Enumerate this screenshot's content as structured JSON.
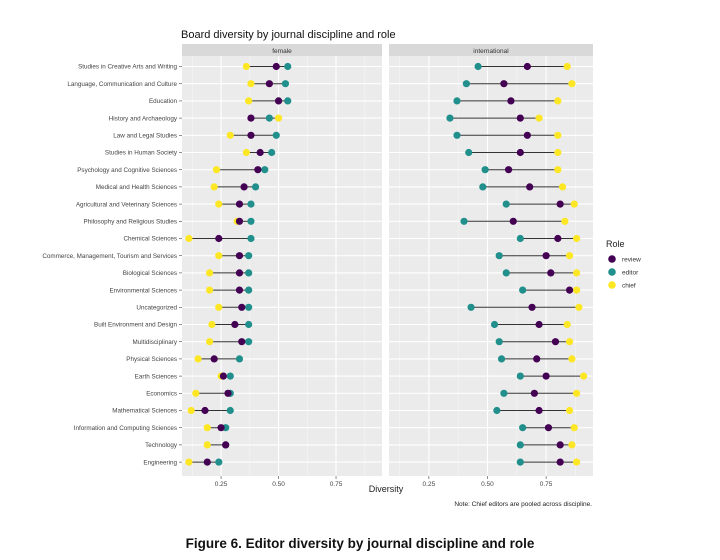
{
  "figure": {
    "caption": "Figure 6. Editor diversity by journal discipline and role"
  },
  "chart_data": {
    "type": "scatter",
    "subtype": "dumbbell",
    "title": "Board diversity by journal discipline and role",
    "xlabel": "Diversity",
    "ylabel": "",
    "note": "Note: Chief editors are pooled across discipline.",
    "xlim": [
      0.08,
      0.95
    ],
    "xticks": [
      0.25,
      0.5,
      0.75
    ],
    "xtick_labels": [
      "0.25",
      "0.50",
      "0.75"
    ],
    "grid": true,
    "legend": {
      "title": "Role",
      "placement": "right",
      "entries": [
        {
          "key": "review",
          "label": "review",
          "color": "#440154"
        },
        {
          "key": "editor",
          "label": "editor",
          "color": "#21908C"
        },
        {
          "key": "chief",
          "label": "chief",
          "color": "#FDE725"
        }
      ]
    },
    "categories": [
      "Studies in Creative Arts and Writing",
      "Language, Communication and Culture",
      "Education",
      "History and Archaeology",
      "Law and Legal Studies",
      "Studies in Human Society",
      "Psychology and Cognitive Sciences",
      "Medical and Health Sciences",
      "Agricultural and Veterinary Sciences",
      "Philosophy and Religious Studies",
      "Chemical Sciences",
      "Commerce, Management, Tourism and Services",
      "Biological Sciences",
      "Environmental Sciences",
      "Uncategorized",
      "Built Environment and Design",
      "Multidisciplinary",
      "Physical Sciences",
      "Earth Sciences",
      "Economics",
      "Mathematical Sciences",
      "Information and Computing Sciences",
      "Technology",
      "Engineering"
    ],
    "panels": [
      {
        "label": "female",
        "series": [
          {
            "name": "review",
            "values": [
              0.49,
              0.46,
              0.5,
              0.38,
              0.38,
              0.42,
              0.41,
              0.35,
              0.33,
              0.33,
              0.24,
              0.33,
              0.33,
              0.33,
              0.34,
              0.31,
              0.34,
              0.22,
              0.26,
              0.28,
              0.18,
              0.25,
              0.27,
              0.19
            ]
          },
          {
            "name": "editor",
            "values": [
              0.54,
              0.53,
              0.54,
              0.46,
              0.49,
              0.47,
              0.44,
              0.4,
              0.38,
              0.38,
              0.38,
              0.37,
              0.37,
              0.37,
              0.37,
              0.37,
              0.37,
              0.33,
              0.29,
              0.29,
              0.29,
              0.27,
              0.27,
              0.24
            ]
          },
          {
            "name": "chief",
            "values": [
              0.36,
              0.38,
              0.37,
              0.5,
              0.29,
              0.36,
              0.23,
              0.22,
              0.24,
              0.32,
              0.11,
              0.24,
              0.2,
              0.2,
              0.24,
              0.21,
              0.2,
              0.15,
              0.25,
              0.14,
              0.12,
              0.19,
              0.19,
              0.11
            ]
          }
        ]
      },
      {
        "label": "international",
        "series": [
          {
            "name": "review",
            "values": [
              0.67,
              0.57,
              0.6,
              0.64,
              0.67,
              0.64,
              0.59,
              0.68,
              0.81,
              0.61,
              0.8,
              0.75,
              0.77,
              0.85,
              0.69,
              0.72,
              0.79,
              0.71,
              0.75,
              0.7,
              0.72,
              0.76,
              0.81,
              0.81
            ]
          },
          {
            "name": "editor",
            "values": [
              0.46,
              0.41,
              0.37,
              0.34,
              0.37,
              0.42,
              0.49,
              0.48,
              0.58,
              0.4,
              0.64,
              0.55,
              0.58,
              0.65,
              0.43,
              0.53,
              0.55,
              0.56,
              0.64,
              0.57,
              0.54,
              0.65,
              0.64,
              0.64
            ]
          },
          {
            "name": "chief",
            "values": [
              0.84,
              0.86,
              0.8,
              0.72,
              0.8,
              0.8,
              0.8,
              0.82,
              0.87,
              0.83,
              0.88,
              0.85,
              0.88,
              0.88,
              0.89,
              0.84,
              0.85,
              0.86,
              0.91,
              0.88,
              0.85,
              0.87,
              0.86,
              0.88
            ]
          }
        ]
      }
    ]
  }
}
